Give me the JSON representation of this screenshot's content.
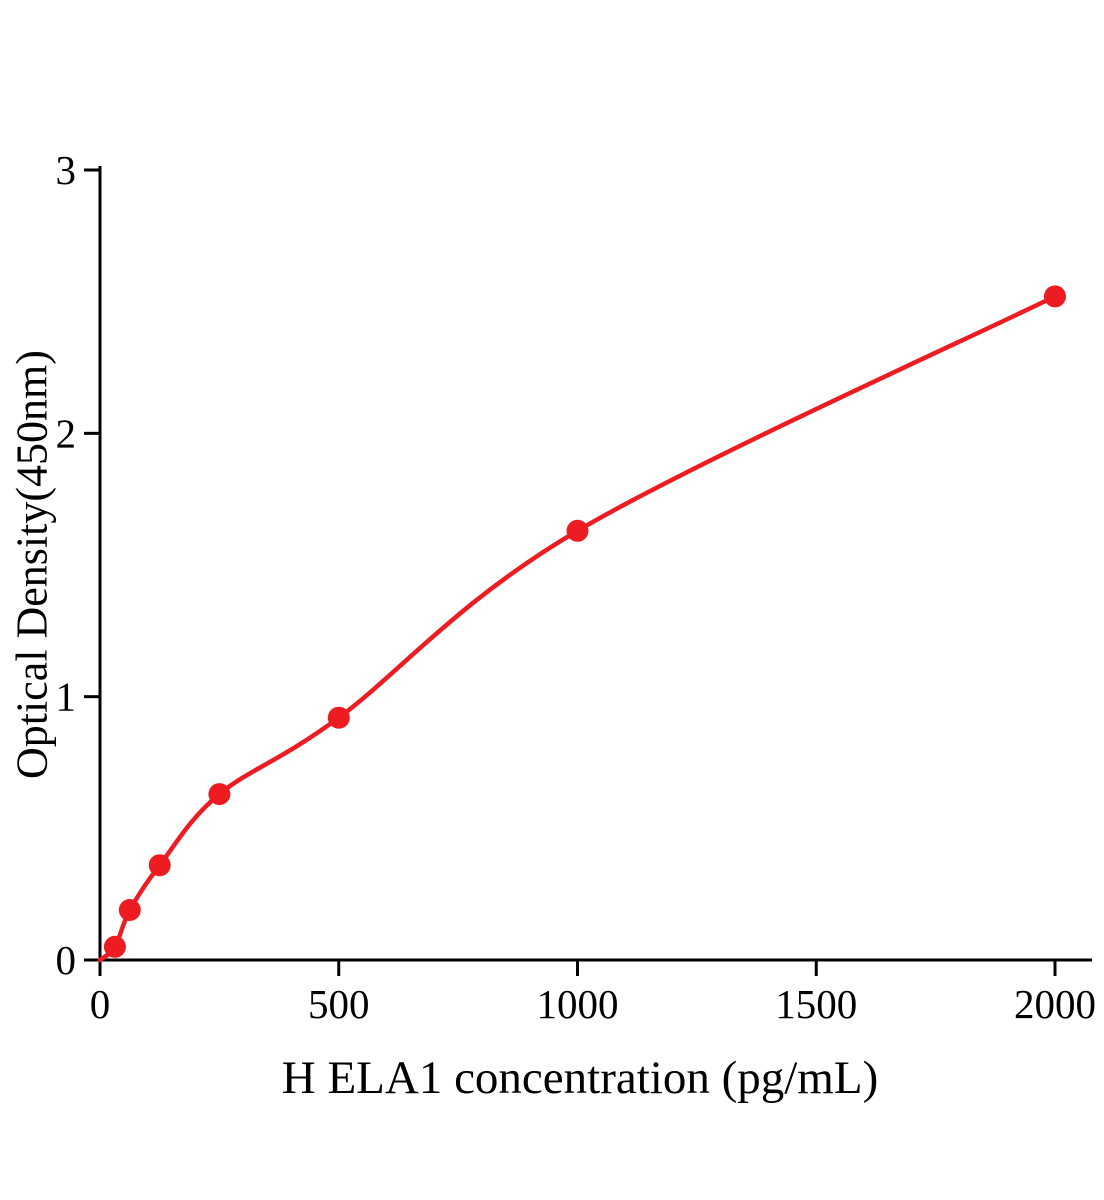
{
  "chart_data": {
    "type": "scatter",
    "title": "",
    "xlabel": "H ELA1 concentration (pg/mL)",
    "ylabel": "Optical Density(450nm)",
    "x": [
      31.25,
      62.5,
      125,
      250,
      500,
      1000,
      2000
    ],
    "y": [
      0.05,
      0.19,
      0.36,
      0.63,
      0.92,
      1.63,
      2.52
    ],
    "curve_start": {
      "x": 0,
      "y": 0
    },
    "xticks": [
      0,
      500,
      1000,
      1500,
      2000
    ],
    "yticks": [
      0,
      1,
      2,
      3
    ],
    "xlim": [
      0,
      2000
    ],
    "ylim": [
      0,
      3
    ],
    "grid": false,
    "legend_position": "none",
    "curve_style": "smooth-fit",
    "colors": {
      "marker": "#ec1c22",
      "line": "#ec1c22",
      "axis": "#000000",
      "text": "#000000",
      "background": "#ffffff"
    }
  }
}
